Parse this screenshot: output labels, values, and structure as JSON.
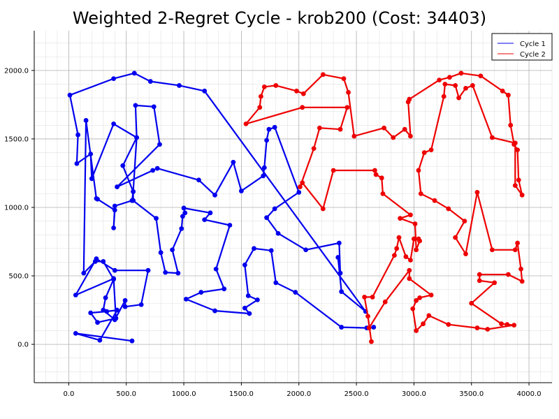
{
  "chart_data": {
    "type": "line",
    "title": "Weighted 2-Regret Cycle - krob200 (Cost: 34403)",
    "xlabel": "",
    "ylabel": "",
    "xlim": [
      -300,
      4200
    ],
    "ylim": [
      -280,
      2290
    ],
    "x_ticks": [
      "0.0",
      "500.0",
      "1000.0",
      "1500.0",
      "2000.0",
      "2500.0",
      "3000.0",
      "3500.0",
      "4000.0"
    ],
    "y_ticks": [
      "0.0",
      "500.0",
      "1000.0",
      "1500.0",
      "2000.0"
    ],
    "grid": true,
    "legend": {
      "position": "top-right"
    },
    "series": [
      {
        "name": "Cycle 1",
        "color": "#0000ee",
        "points": [
          [
            2650,
            125
          ],
          [
            2590,
            120
          ],
          [
            2370,
            125
          ],
          [
            1970,
            380
          ],
          [
            1800,
            450
          ],
          [
            1760,
            685
          ],
          [
            1610,
            700
          ],
          [
            1530,
            580
          ],
          [
            1560,
            355
          ],
          [
            1640,
            325
          ],
          [
            1530,
            265
          ],
          [
            1570,
            225
          ],
          [
            1270,
            245
          ],
          [
            1020,
            330
          ],
          [
            1150,
            380
          ],
          [
            1350,
            405
          ],
          [
            1280,
            550
          ],
          [
            1400,
            870
          ],
          [
            1180,
            910
          ],
          [
            1230,
            960
          ],
          [
            1000,
            995
          ],
          [
            1010,
            960
          ],
          [
            990,
            935
          ],
          [
            980,
            845
          ],
          [
            900,
            690
          ],
          [
            950,
            520
          ],
          [
            840,
            525
          ],
          [
            800,
            670
          ],
          [
            760,
            920
          ],
          [
            560,
            1050
          ],
          [
            560,
            1115
          ],
          [
            470,
            1305
          ],
          [
            590,
            1510
          ],
          [
            580,
            1745
          ],
          [
            740,
            1735
          ],
          [
            790,
            1460
          ],
          [
            420,
            1150
          ],
          [
            730,
            1270
          ],
          [
            770,
            1285
          ],
          [
            1130,
            1200
          ],
          [
            1270,
            1090
          ],
          [
            1430,
            1330
          ],
          [
            1500,
            1120
          ],
          [
            1690,
            1230
          ],
          [
            1700,
            1290
          ],
          [
            1720,
            1490
          ],
          [
            1740,
            1570
          ],
          [
            1790,
            1585
          ],
          [
            2000,
            1110
          ],
          [
            1790,
            990
          ],
          [
            1720,
            925
          ],
          [
            1820,
            810
          ],
          [
            2060,
            690
          ],
          [
            2350,
            740
          ],
          [
            2360,
            520
          ],
          [
            2340,
            635
          ],
          [
            2370,
            385
          ],
          [
            2580,
            240
          ],
          [
            1180,
            1850
          ],
          [
            960,
            1890
          ],
          [
            710,
            1920
          ],
          [
            570,
            1980
          ],
          [
            390,
            1940
          ],
          [
            10,
            1820
          ],
          [
            80,
            1530
          ],
          [
            70,
            1320
          ],
          [
            190,
            1390
          ],
          [
            200,
            1210
          ],
          [
            390,
            1610
          ],
          [
            590,
            1510
          ],
          [
            560,
            1115
          ],
          [
            550,
            1050
          ],
          [
            400,
            1010
          ],
          [
            390,
            850
          ],
          [
            400,
            980
          ],
          [
            250,
            1060
          ],
          [
            240,
            1065
          ],
          [
            150,
            1635
          ],
          [
            130,
            520
          ],
          [
            230,
            605
          ],
          [
            300,
            605
          ],
          [
            390,
            475
          ],
          [
            320,
            340
          ],
          [
            300,
            250
          ],
          [
            400,
            180
          ],
          [
            490,
            320
          ],
          [
            490,
            275
          ],
          [
            630,
            290
          ],
          [
            690,
            540
          ],
          [
            400,
            540
          ],
          [
            240,
            625
          ],
          [
            60,
            360
          ],
          [
            390,
            480
          ],
          [
            410,
            190
          ],
          [
            250,
            160
          ],
          [
            190,
            230
          ],
          [
            330,
            240
          ],
          [
            420,
            250
          ],
          [
            270,
            30
          ],
          [
            60,
            80
          ],
          [
            550,
            25
          ]
        ]
      },
      {
        "name": "Cycle 2",
        "color": "#ee0000",
        "points": [
          [
            2630,
            20
          ],
          [
            2600,
            205
          ],
          [
            2570,
            345
          ],
          [
            2640,
            345
          ],
          [
            2830,
            650
          ],
          [
            2850,
            700
          ],
          [
            2870,
            780
          ],
          [
            2930,
            640
          ],
          [
            2970,
            615
          ],
          [
            3000,
            770
          ],
          [
            3040,
            770
          ],
          [
            3050,
            755
          ],
          [
            3020,
            690
          ],
          [
            3010,
            880
          ],
          [
            2880,
            920
          ],
          [
            2970,
            945
          ],
          [
            2730,
            1100
          ],
          [
            2720,
            1215
          ],
          [
            2670,
            1240
          ],
          [
            2660,
            1270
          ],
          [
            2300,
            1270
          ],
          [
            2210,
            990
          ],
          [
            2030,
            1180
          ],
          [
            2010,
            1150
          ],
          [
            2130,
            1430
          ],
          [
            2180,
            1580
          ],
          [
            2360,
            1570
          ],
          [
            2420,
            1730
          ],
          [
            2030,
            1730
          ],
          [
            1540,
            1610
          ],
          [
            1660,
            1730
          ],
          [
            1670,
            1810
          ],
          [
            1700,
            1880
          ],
          [
            1800,
            1890
          ],
          [
            1980,
            1850
          ],
          [
            2040,
            1830
          ],
          [
            2210,
            1970
          ],
          [
            2390,
            1940
          ],
          [
            2430,
            1840
          ],
          [
            2480,
            1520
          ],
          [
            2740,
            1580
          ],
          [
            2820,
            1510
          ],
          [
            2920,
            1570
          ],
          [
            2970,
            1520
          ],
          [
            2950,
            1770
          ],
          [
            2960,
            1790
          ],
          [
            3220,
            1930
          ],
          [
            3310,
            1950
          ],
          [
            3410,
            1980
          ],
          [
            3580,
            1960
          ],
          [
            3770,
            1850
          ],
          [
            3820,
            1820
          ],
          [
            3840,
            1600
          ],
          [
            3870,
            1460
          ],
          [
            3900,
            1420
          ],
          [
            3910,
            1200
          ],
          [
            3940,
            1090
          ],
          [
            3880,
            1160
          ],
          [
            3880,
            1470
          ],
          [
            3680,
            1510
          ],
          [
            3510,
            1890
          ],
          [
            3450,
            1870
          ],
          [
            3390,
            1800
          ],
          [
            3360,
            1890
          ],
          [
            3270,
            1900
          ],
          [
            3260,
            1810
          ],
          [
            3150,
            1420
          ],
          [
            3090,
            1400
          ],
          [
            3040,
            1270
          ],
          [
            3060,
            1100
          ],
          [
            3180,
            1050
          ],
          [
            3300,
            990
          ],
          [
            3440,
            900
          ],
          [
            3360,
            780
          ],
          [
            3450,
            660
          ],
          [
            3550,
            1110
          ],
          [
            3680,
            690
          ],
          [
            3880,
            690
          ],
          [
            3900,
            740
          ],
          [
            3930,
            550
          ],
          [
            3940,
            460
          ],
          [
            3820,
            510
          ],
          [
            3570,
            510
          ],
          [
            3570,
            465
          ],
          [
            3700,
            450
          ],
          [
            3500,
            300
          ],
          [
            3760,
            150
          ],
          [
            3810,
            145
          ],
          [
            3870,
            140
          ],
          [
            3640,
            110
          ],
          [
            3550,
            120
          ],
          [
            3300,
            145
          ],
          [
            3130,
            210
          ],
          [
            3080,
            150
          ],
          [
            3020,
            100
          ],
          [
            2990,
            260
          ],
          [
            3020,
            320
          ],
          [
            3050,
            340
          ],
          [
            3150,
            360
          ],
          [
            2960,
            480
          ],
          [
            2960,
            540
          ],
          [
            2750,
            310
          ],
          [
            2610,
            120
          ]
        ]
      }
    ]
  }
}
